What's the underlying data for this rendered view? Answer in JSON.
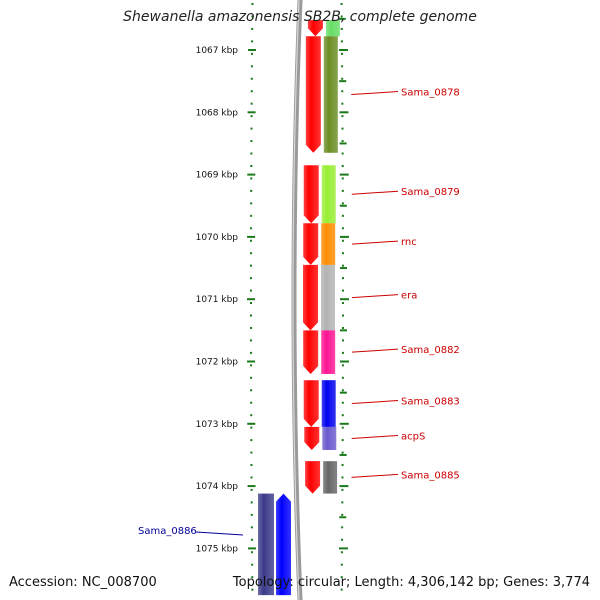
{
  "title": "Shewanella amazonensis SB2B, complete genome",
  "footer": {
    "accession": "Accession: NC_008700",
    "summary": "Topology: circular; Length: 4,306,142 bp; Genes: 3,774"
  },
  "colors": {
    "forward_label": "#cc0000",
    "reverse_label": "#000099",
    "tick": "#1a7a1a",
    "backbone": "#808080",
    "cds": "#ff0000"
  },
  "ticks": [
    {
      "label": "1067 kbp"
    },
    {
      "label": "1068 kbp"
    },
    {
      "label": "1069 kbp"
    },
    {
      "label": "1070 kbp"
    },
    {
      "label": "1071 kbp"
    },
    {
      "label": "1072 kbp"
    },
    {
      "label": "1073 kbp"
    },
    {
      "label": "1074 kbp"
    },
    {
      "label": "1075 kbp"
    }
  ],
  "forward_genes": [
    {
      "name": "",
      "color": "#66dd66",
      "start_kbp": 1066.52,
      "end_kbp": 1066.78
    },
    {
      "name": "Sama_0878",
      "color": "#6b8e23",
      "start_kbp": 1066.78,
      "end_kbp": 1068.65
    },
    {
      "name": "Sama_0879",
      "color": "#99ee33",
      "start_kbp": 1068.85,
      "end_kbp": 1069.78
    },
    {
      "name": "rnc",
      "color": "#ff8c00",
      "start_kbp": 1069.78,
      "end_kbp": 1070.45
    },
    {
      "name": "era",
      "color": "#b3b3b3",
      "start_kbp": 1070.45,
      "end_kbp": 1071.5
    },
    {
      "name": "Sama_0882",
      "color": "#ff1493",
      "start_kbp": 1071.5,
      "end_kbp": 1072.2
    },
    {
      "name": "Sama_0883",
      "color": "#0000ee",
      "start_kbp": 1072.3,
      "end_kbp": 1073.05
    },
    {
      "name": "acpS",
      "color": "#6a5acd",
      "start_kbp": 1073.05,
      "end_kbp": 1073.42
    },
    {
      "name": "Sama_0885",
      "color": "#666666",
      "start_kbp": 1073.6,
      "end_kbp": 1074.12
    }
  ],
  "reverse_genes": [
    {
      "name": "Sama_0886",
      "color": "#3b3b8b",
      "start_kbp": 1074.12,
      "end_kbp": 1075.75
    }
  ]
}
